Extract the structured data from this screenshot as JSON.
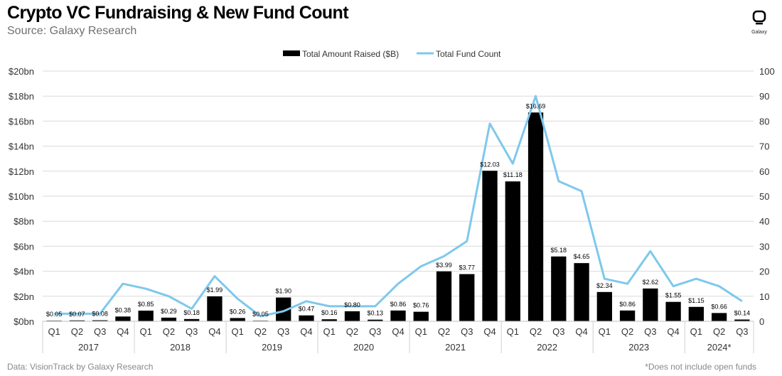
{
  "header": {
    "title": "Crypto VC Fundraising & New Fund Count",
    "subtitle": "Source: Galaxy Research",
    "logo_text": "Galaxy"
  },
  "footer": {
    "left": "Data: VisionTrack by Galaxy Research",
    "right": "*Does not include open funds"
  },
  "colors": {
    "bars": "#000000",
    "line": "#7ec8ec",
    "grid": "#d9d9d9"
  },
  "chart_data": {
    "type": "bar",
    "title": "Crypto VC Fundraising & New Fund Count",
    "categories": [
      "Q1",
      "Q2",
      "Q3",
      "Q4",
      "Q1",
      "Q2",
      "Q3",
      "Q4",
      "Q1",
      "Q2",
      "Q3",
      "Q4",
      "Q1",
      "Q2",
      "Q3",
      "Q4",
      "Q1",
      "Q2",
      "Q3",
      "Q4",
      "Q1",
      "Q2",
      "Q3",
      "Q4",
      "Q1",
      "Q2",
      "Q3",
      "Q4",
      "Q1",
      "Q2",
      "Q3"
    ],
    "year_groups": [
      {
        "label": "2017",
        "count": 4
      },
      {
        "label": "2018",
        "count": 4
      },
      {
        "label": "2019",
        "count": 4
      },
      {
        "label": "2020",
        "count": 4
      },
      {
        "label": "2021",
        "count": 4
      },
      {
        "label": "2022",
        "count": 4
      },
      {
        "label": "2023",
        "count": 4
      },
      {
        "label": "2024*",
        "count": 3
      }
    ],
    "series": [
      {
        "name": "Total Amount Raised ($B)",
        "type": "bar",
        "axis": "left",
        "values": [
          0.05,
          0.07,
          0.08,
          0.38,
          0.85,
          0.29,
          0.18,
          1.99,
          0.26,
          0.05,
          1.9,
          0.47,
          0.16,
          0.8,
          0.13,
          0.86,
          0.76,
          3.99,
          3.77,
          12.03,
          11.18,
          16.69,
          5.18,
          4.65,
          2.34,
          0.86,
          2.62,
          1.55,
          1.15,
          0.66,
          0.14
        ],
        "labels": [
          "$0.05",
          "$0.07",
          "$0.08",
          "$0.38",
          "$0.85",
          "$0.29",
          "$0.18",
          "$1.99",
          "$0.26",
          "$0.05",
          "$1.90",
          "$0.47",
          "$0.16",
          "$0.80",
          "$0.13",
          "$0.86",
          "$0.76",
          "$3.99",
          "$3.77",
          "$12.03",
          "$11.18",
          "$16.69",
          "$5.18",
          "$4.65",
          "$2.34",
          "$0.86",
          "$2.62",
          "$1.55",
          "$1.15",
          "$0.66",
          "$0.14"
        ]
      },
      {
        "name": "Total Fund Count",
        "type": "line",
        "axis": "right",
        "values": [
          3,
          3,
          3,
          15,
          13,
          10,
          5,
          18,
          9,
          2,
          4,
          8,
          6,
          6,
          6,
          15,
          22,
          26,
          32,
          79,
          63,
          90,
          56,
          52,
          17,
          15,
          28,
          14,
          17,
          14,
          8
        ]
      }
    ],
    "y_left": {
      "min": 0,
      "max": 20,
      "ticks": [
        "$0bn",
        "$2bn",
        "$4bn",
        "$6bn",
        "$8bn",
        "$10bn",
        "$12bn",
        "$14bn",
        "$16bn",
        "$18bn",
        "$20bn"
      ]
    },
    "y_right": {
      "min": 0,
      "max": 100,
      "ticks": [
        "0",
        "10",
        "20",
        "30",
        "40",
        "50",
        "60",
        "70",
        "80",
        "90",
        "100"
      ]
    },
    "grid": true,
    "legend": "top-center"
  }
}
